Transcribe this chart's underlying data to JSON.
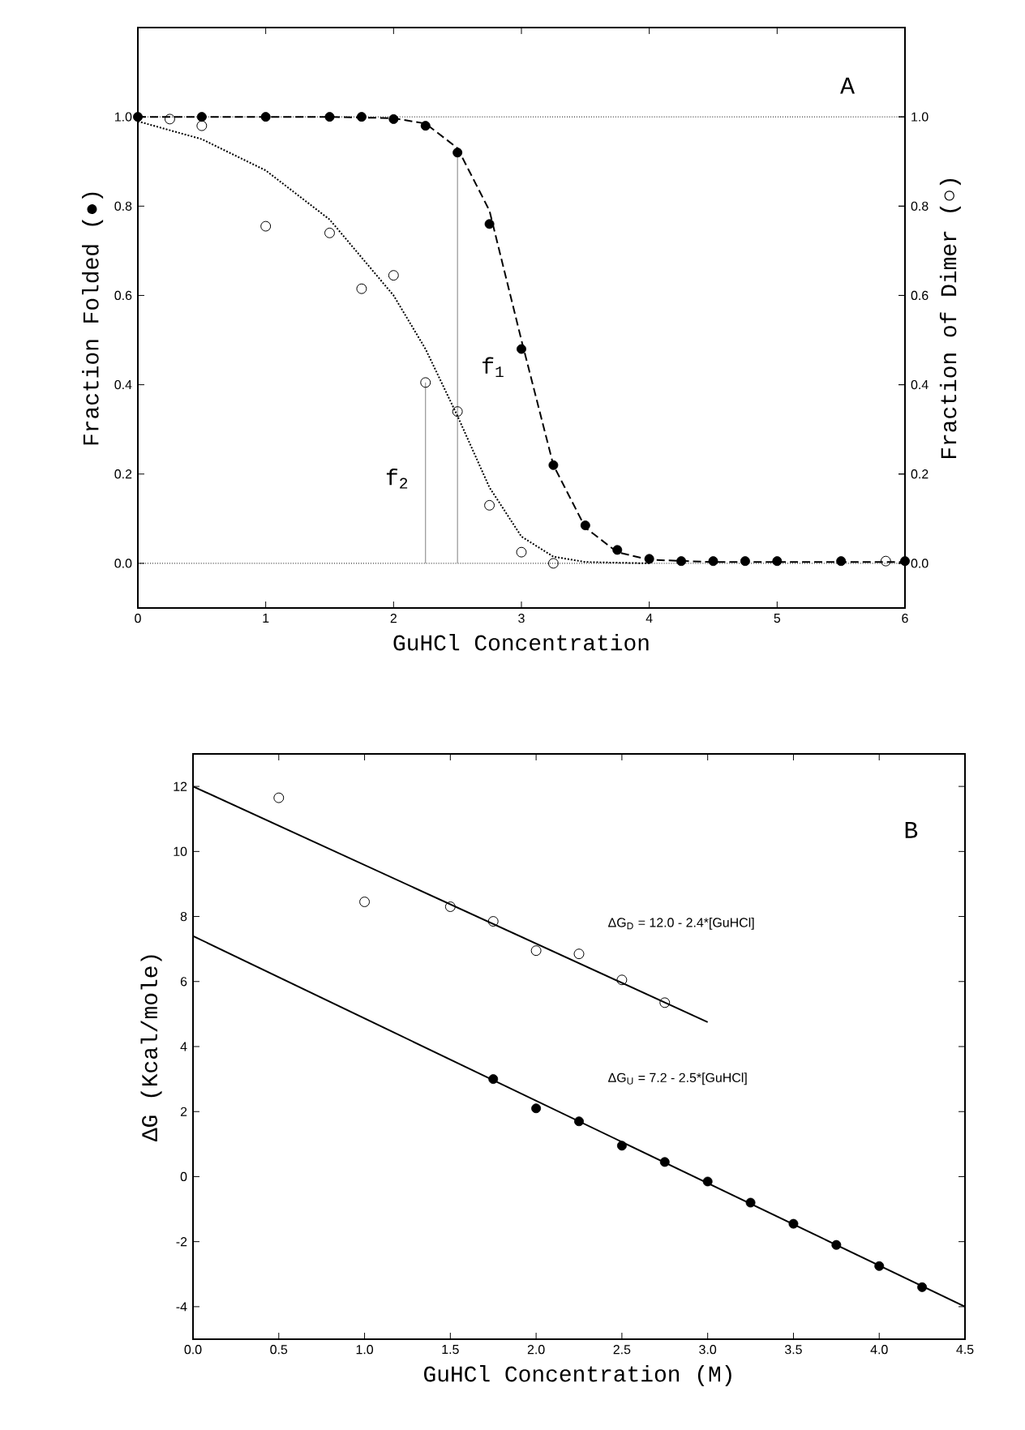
{
  "chart_data": [
    {
      "type": "scatter",
      "title": "A",
      "xlabel": "GuHCl Concentration",
      "ylabel": "Fraction Folded (●)",
      "y2label": "Fraction of Dimer (○)",
      "xlim": [
        0,
        6
      ],
      "ylim": [
        -0.1,
        1.2
      ],
      "y2lim": [
        -0.1,
        1.2
      ],
      "xticks": [
        0,
        1,
        2,
        3,
        4,
        5,
        6
      ],
      "yticks": [
        {
          "value": 0,
          "label": "0.0"
        },
        {
          "value": 0.2,
          "label": "0.2"
        },
        {
          "value": 0.4,
          "label": "0.4"
        },
        {
          "value": 0.6,
          "label": "0.6"
        },
        {
          "value": 0.8,
          "label": "0.8"
        },
        {
          "value": 1,
          "label": "1.0"
        }
      ],
      "y2ticks": [
        {
          "value": 0,
          "label": "0.0"
        },
        {
          "value": 0.2,
          "label": "0.2"
        },
        {
          "value": 0.4,
          "label": "0.4"
        },
        {
          "value": 0.6,
          "label": "0.6"
        },
        {
          "value": 0.8,
          "label": "0.8"
        },
        {
          "value": 1,
          "label": "1.0"
        }
      ],
      "ref_lines": [
        {
          "axis": "y",
          "value": 1,
          "color": "#000000",
          "line_style": "dotted"
        },
        {
          "axis": "y",
          "value": 0,
          "color": "#000000",
          "line_style": "dotted"
        }
      ],
      "annotations": [
        "f$_{1}$",
        "f$_{2}$"
      ],
      "series": [
        {
          "type": "line",
          "color": "#000000",
          "line_style": "dotted",
          "marker": "none",
          "axis": "y2",
          "x": [
            0,
            0.5,
            1,
            1.5,
            2,
            2.25,
            2.5,
            2.75,
            3,
            3.25,
            3.5,
            4
          ],
          "values": [
            0.99,
            0.95,
            0.88,
            0.77,
            0.6,
            0.48,
            0.33,
            0.17,
            0.06,
            0.015,
            0.003,
            0
          ]
        },
        {
          "type": "line",
          "color": "#000000",
          "line_style": "dashed",
          "marker": "none",
          "x": [
            0,
            1.5,
            2,
            2.25,
            2.5,
            2.75,
            3,
            3.25,
            3.5,
            3.75,
            4,
            4.5,
            6
          ],
          "values": [
            1,
            1,
            0.997,
            0.985,
            0.93,
            0.79,
            0.5,
            0.22,
            0.08,
            0.025,
            0.008,
            0.003,
            0.003
          ]
        },
        {
          "type": "line",
          "color": "#808080",
          "line_style": "solid",
          "marker": "none",
          "x": [
            2.25,
            2.25
          ],
          "values": [
            0,
            0.405
          ]
        },
        {
          "type": "line",
          "color": "#808080",
          "line_style": "solid",
          "marker": "none",
          "x": [
            2.5,
            2.5
          ],
          "values": [
            0,
            0.92
          ]
        },
        {
          "color": "#000000",
          "marker": "circle-open",
          "axis": "y2",
          "x": [
            0.25,
            0.5,
            1,
            1.5,
            1.75,
            2,
            2.25,
            2.5,
            2.75,
            3,
            3.25,
            5.85
          ],
          "values": [
            0.995,
            0.98,
            0.755,
            0.74,
            0.615,
            0.645,
            0.405,
            0.34,
            0.13,
            0.025,
            0.0,
            0.005
          ]
        },
        {
          "color": "#000000",
          "marker": "circle",
          "x": [
            0,
            0.5,
            1,
            1.5,
            1.75,
            2,
            2.25,
            2.5,
            2.75,
            3,
            3.25,
            3.5,
            3.75,
            4,
            4.25,
            4.5,
            4.75,
            5,
            5.5,
            6
          ],
          "values": [
            1,
            1,
            1,
            1,
            1,
            0.995,
            0.98,
            0.92,
            0.76,
            0.48,
            0.22,
            0.085,
            0.03,
            0.01,
            0.005,
            0.005,
            0.005,
            0.005,
            0.005,
            0.005
          ]
        }
      ]
    },
    {
      "type": "scatter",
      "title": "B",
      "xlabel": "GuHCl Concentration (M)",
      "ylabel": "ΔG (Kcal/mole)",
      "xlim": [
        0,
        4.5
      ],
      "ylim": [
        -5,
        13
      ],
      "xticks": [
        {
          "value": 0,
          "label": "0.0"
        },
        {
          "value": 0.5,
          "label": "0.5"
        },
        {
          "value": 1,
          "label": "1.0"
        },
        {
          "value": 1.5,
          "label": "1.5"
        },
        {
          "value": 2,
          "label": "2.0"
        },
        {
          "value": 2.5,
          "label": "2.5"
        },
        {
          "value": 3,
          "label": "3.0"
        },
        {
          "value": 3.5,
          "label": "3.5"
        },
        {
          "value": 4,
          "label": "4.0"
        },
        {
          "value": 4.5,
          "label": "4.5"
        }
      ],
      "yticks": [
        -4,
        -2,
        0,
        2,
        4,
        6,
        8,
        10,
        12
      ],
      "annotations": [
        "ΔG$_{D}$ = 12.0 - 2.4*[GuHCl]",
        "ΔG$_{U}$ = 7.2 - 2.5*[GuHCl]"
      ],
      "series": [
        {
          "type": "line",
          "color": "#000000",
          "line_style": "solid",
          "marker": "none",
          "x": [
            0,
            3
          ],
          "values": [
            12,
            4.75
          ]
        },
        {
          "type": "line",
          "color": "#000000",
          "line_style": "solid",
          "marker": "none",
          "x": [
            0,
            4.5
          ],
          "values": [
            7.4,
            -4.0
          ]
        },
        {
          "color": "#000000",
          "marker": "circle-open",
          "x": [
            0.5,
            1,
            1.5,
            1.75,
            2,
            2.25,
            2.5,
            2.75
          ],
          "values": [
            11.65,
            8.45,
            8.3,
            7.85,
            6.95,
            6.85,
            6.05,
            5.35
          ]
        },
        {
          "color": "#000000",
          "marker": "circle",
          "x": [
            1.75,
            2,
            2.25,
            2.5,
            2.75,
            3,
            3.25,
            3.5,
            3.75,
            4,
            4.25
          ],
          "values": [
            3.0,
            2.1,
            1.7,
            0.95,
            0.45,
            -0.15,
            -0.8,
            -1.45,
            -2.1,
            -2.75,
            -3.4
          ]
        }
      ]
    }
  ]
}
